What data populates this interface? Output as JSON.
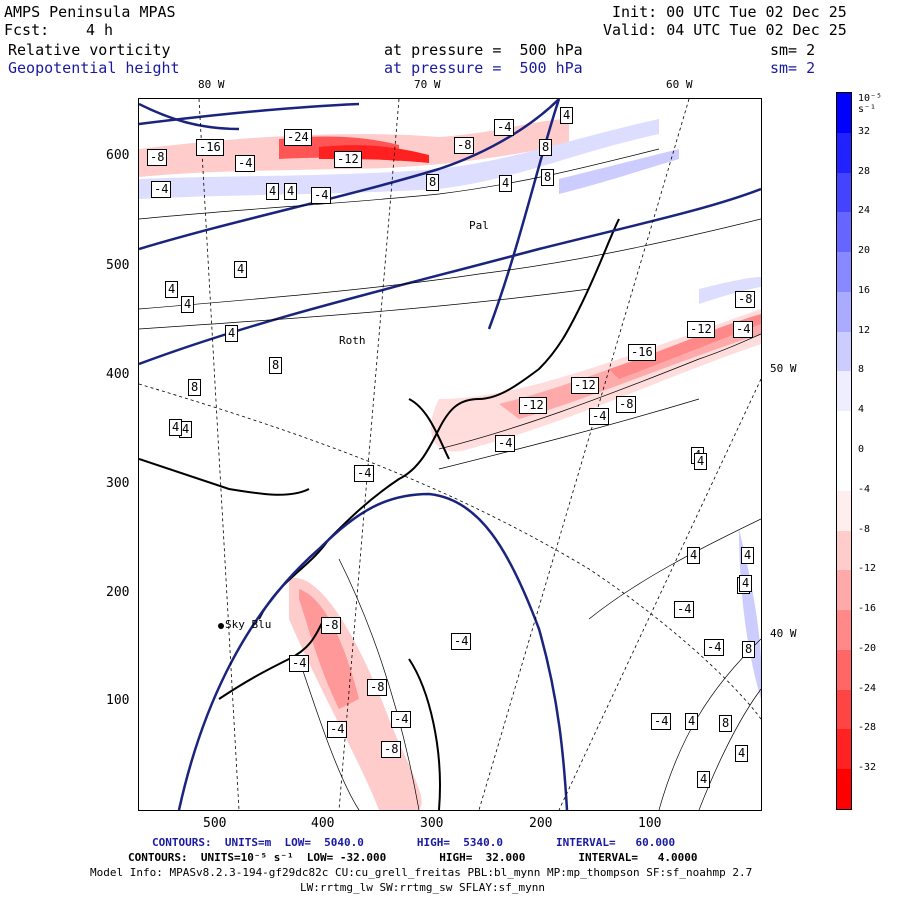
{
  "header": {
    "title": "AMPS Peninsula MPAS",
    "fcst_label": "Fcst:",
    "fcst_value": "4 h",
    "init": "Init: 00 UTC Tue 02 Dec 25",
    "valid": "Valid: 04 UTC Tue 02 Dec 25",
    "field1": "Relative vorticity",
    "field2": "Geopotential height",
    "pressure1": "at pressure =  500 hPa",
    "pressure2": "at pressure =  500 hPa",
    "sm1": "sm= 2",
    "sm2": "sm= 2"
  },
  "axes": {
    "y_ticks": [
      "600",
      "500",
      "400",
      "300",
      "200",
      "100"
    ],
    "x_ticks": [
      "500",
      "400",
      "300",
      "200",
      "100"
    ],
    "lon_top": [
      "80 W",
      "70 W",
      "60 W"
    ],
    "lon_right": [
      "50 W",
      "40 W"
    ]
  },
  "places": {
    "sky_blu": "Sky Blu",
    "rothera": "Roth",
    "palmer": "Pal"
  },
  "colorbar": {
    "unit": "10⁻⁵ s⁻¹",
    "labels": [
      "32",
      "28",
      "24",
      "20",
      "16",
      "12",
      "8",
      "4",
      "0",
      "-4",
      "-8",
      "-12",
      "-16",
      "-20",
      "-24",
      "-28",
      "-32"
    ],
    "colors": [
      "#0000ff",
      "#2222ff",
      "#4444ff",
      "#6666ff",
      "#8888ff",
      "#aaaaff",
      "#ccccff",
      "#eeeeff",
      "#ffffff",
      "#ffffff",
      "#ffeeee",
      "#ffcccc",
      "#ffaaaa",
      "#ff8888",
      "#ff6666",
      "#ff4444",
      "#ff2222",
      "#ff0000"
    ]
  },
  "contour_labels": [
    "-16",
    "-8",
    "-24",
    "-12",
    "-4",
    "-8",
    "-4",
    "8",
    "4",
    "-4",
    "4",
    "-4",
    "4",
    "8",
    "4",
    "8",
    "4",
    "4",
    "-8",
    "-12",
    "-16",
    "-4",
    "-12",
    "-8",
    "-12",
    "-4",
    "-4",
    "4",
    "4",
    "-4",
    "-8",
    "-4",
    "-8",
    "-4",
    "-8",
    "-4",
    "4",
    "-4",
    "8",
    "4",
    "8",
    "4",
    "-4",
    "4",
    "8",
    "-4",
    "4",
    "4",
    "8",
    "4",
    "4",
    "4",
    "-4",
    "4",
    "4"
  ],
  "footer": {
    "line1": "CONTOURS:  UNITS=m  LOW=  5040.0        HIGH=  5340.0        INTERVAL=   60.000",
    "line2": "CONTOURS:  UNITS=10⁻⁵ s⁻¹  LOW= -32.000        HIGH=  32.000        INTERVAL=   4.0000",
    "line3": "Model Info: MPASv8.2.3-194-gf29dc82c CU:cu_grell_freitas PBL:bl_mynn MP:mp_thompson SF:sf_noahmp 2.7",
    "line4": "LW:rrtmg_lw SW:rrtmg_sw SFLAY:sf_mynn"
  }
}
